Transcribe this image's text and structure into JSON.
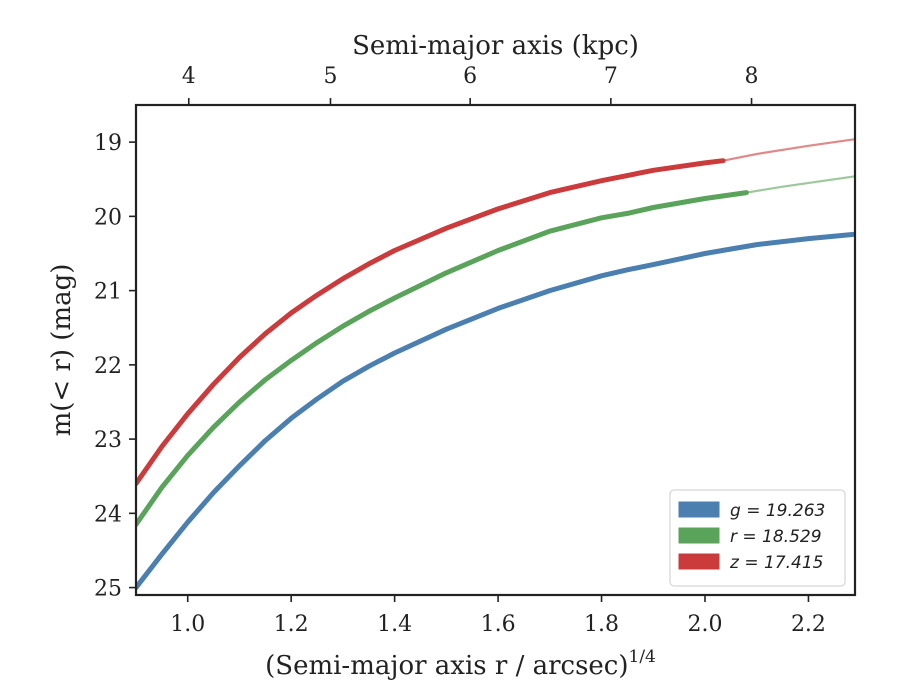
{
  "chart_data": {
    "type": "line",
    "title": "",
    "xlabel": "(Semi-major axis r / arcsec)",
    "xlabel_exponent": "1/4",
    "ylabel": "m(< r) (mag)",
    "top_xlabel": "Semi-major axis (kpc)",
    "xlim": [
      0.9,
      2.29
    ],
    "ylim": [
      25.1,
      18.5
    ],
    "y_inverted": true,
    "xticks": [
      1.0,
      1.2,
      1.4,
      1.6,
      1.8,
      2.0,
      2.2
    ],
    "xtick_labels": [
      "1.0",
      "1.2",
      "1.4",
      "1.6",
      "1.8",
      "2.0",
      "2.2"
    ],
    "yticks": [
      19,
      20,
      21,
      22,
      23,
      24,
      25
    ],
    "ytick_labels": [
      "19",
      "20",
      "21",
      "22",
      "23",
      "24",
      "25"
    ],
    "top_xticks_kpc": [
      4,
      5,
      6,
      7,
      8
    ],
    "top_xtick_labels": [
      "4",
      "5",
      "6",
      "7",
      "8"
    ],
    "top_xtick_positions_x": [
      1.002,
      1.276,
      1.546,
      1.818,
      2.09
    ],
    "grid": false,
    "legend_position": "lower-right",
    "series": [
      {
        "name": "g = 19.263",
        "legend_var": "g",
        "legend_value": "19.263",
        "color": "#4a7fb0",
        "x": [
          0.9,
          0.95,
          1.0,
          1.05,
          1.1,
          1.15,
          1.2,
          1.25,
          1.3,
          1.35,
          1.4,
          1.5,
          1.6,
          1.7,
          1.8,
          1.85,
          1.9,
          2.0,
          2.1,
          2.2,
          2.29
        ],
        "y": [
          25.0,
          24.55,
          24.12,
          23.72,
          23.36,
          23.02,
          22.72,
          22.46,
          22.22,
          22.02,
          21.84,
          21.52,
          21.24,
          21.0,
          20.8,
          20.72,
          20.65,
          20.5,
          20.38,
          20.3,
          20.24
        ],
        "thick_until": 2.29
      },
      {
        "name": "r = 18.529",
        "legend_var": "r",
        "legend_value": "18.529",
        "color": "#5aa35a",
        "x": [
          0.9,
          0.95,
          1.0,
          1.05,
          1.1,
          1.15,
          1.2,
          1.25,
          1.3,
          1.35,
          1.4,
          1.5,
          1.6,
          1.7,
          1.8,
          1.85,
          1.9,
          2.0,
          2.08,
          2.15,
          2.29
        ],
        "y": [
          24.15,
          23.65,
          23.22,
          22.84,
          22.5,
          22.2,
          21.94,
          21.7,
          21.48,
          21.28,
          21.1,
          20.76,
          20.46,
          20.2,
          20.02,
          19.96,
          19.88,
          19.76,
          19.68,
          19.6,
          19.46
        ],
        "thick_until": 2.08
      },
      {
        "name": "z = 17.415",
        "legend_var": "z",
        "legend_value": "17.415",
        "color": "#cc3b3b",
        "x": [
          0.9,
          0.95,
          1.0,
          1.05,
          1.1,
          1.15,
          1.2,
          1.25,
          1.3,
          1.35,
          1.4,
          1.5,
          1.6,
          1.7,
          1.8,
          1.9,
          2.0,
          2.035,
          2.1,
          2.2,
          2.29
        ],
        "y": [
          23.6,
          23.1,
          22.66,
          22.26,
          21.9,
          21.58,
          21.3,
          21.06,
          20.84,
          20.64,
          20.46,
          20.16,
          19.9,
          19.68,
          19.52,
          19.38,
          19.28,
          19.25,
          19.16,
          19.05,
          18.96
        ],
        "thick_until": 2.035
      }
    ]
  }
}
